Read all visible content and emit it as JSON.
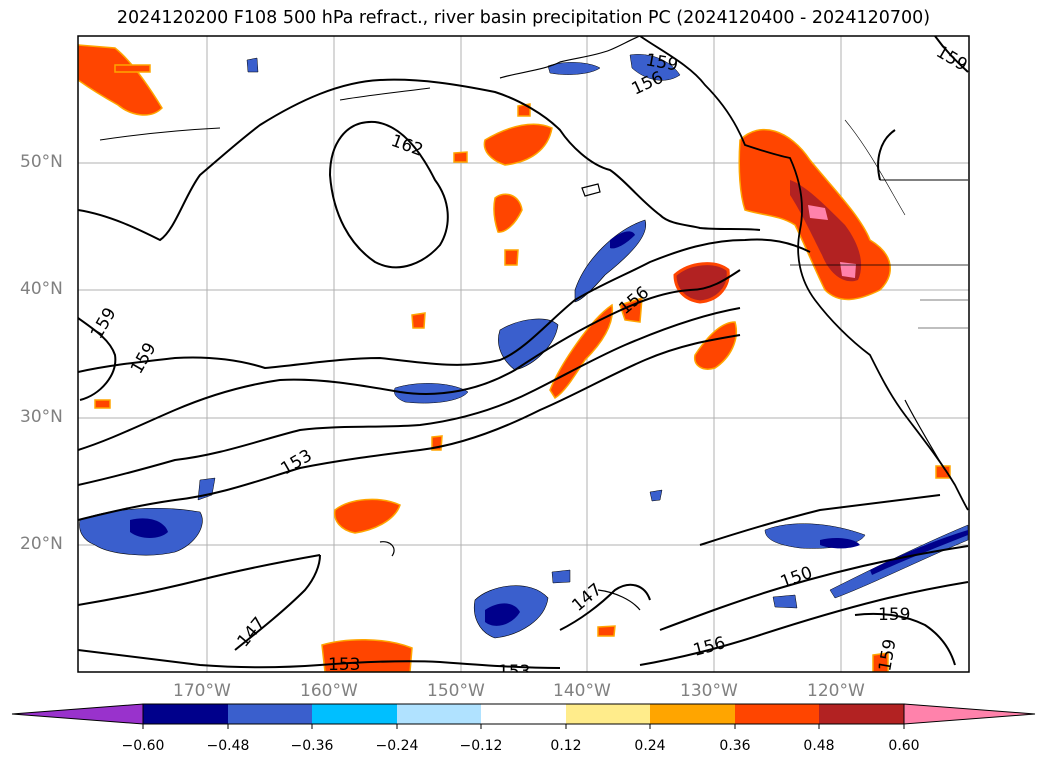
{
  "title": "2024120200 F108 500 hPa refract., river basin precipitation PC (2024120400 - 2024120700)",
  "axes": {
    "lat_labels": [
      "50°N",
      "40°N",
      "30°N",
      "20°N"
    ],
    "lon_labels": [
      "170°W",
      "160°W",
      "150°W",
      "140°W",
      "130°W",
      "120°W"
    ]
  },
  "contour_labels": [
    "162",
    "159",
    "159",
    "159",
    "159",
    "156",
    "156",
    "156",
    "153",
    "153",
    "153",
    "150",
    "147",
    "147",
    "159",
    "159"
  ],
  "colorbar": {
    "ticks": [
      "−0.60",
      "−0.48",
      "−0.36",
      "−0.24",
      "−0.12",
      "0.12",
      "0.24",
      "0.36",
      "0.48",
      "0.60"
    ],
    "colors": [
      "#9932cc",
      "#00008b",
      "#3a5fcd",
      "#00bfff",
      "#b0e2ff",
      "#ffffff",
      "#ffec8b",
      "#ffa500",
      "#ff4500",
      "#b22222",
      "#ff82ab"
    ]
  }
}
